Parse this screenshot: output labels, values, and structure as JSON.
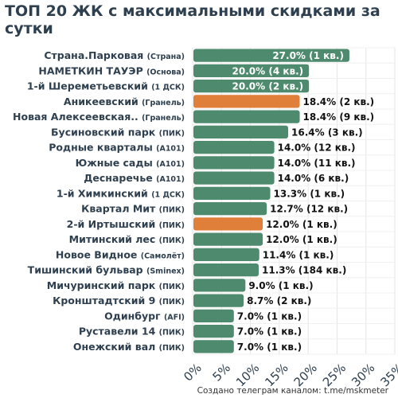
{
  "chart_data": {
    "type": "bar",
    "orientation": "horizontal",
    "title": "ТОП 20 ЖК с максимальными скидками за сутки",
    "xlabel": "",
    "ylabel": "",
    "xlim": [
      0,
      35
    ],
    "x_ticks": [
      "0%",
      "5%",
      "10%",
      "15%",
      "20%",
      "25%",
      "30%",
      "35%"
    ],
    "grid": true,
    "colors": {
      "default": "#4e8b6e",
      "highlight": "#e07f3a",
      "grid": "#e4e4e4",
      "axis_text": "#2e3f4f"
    },
    "bars": [
      {
        "name": "Страна.Парковая",
        "developer": "(Страна)",
        "value": 27.0,
        "label": "27.0% (1 кв.)",
        "highlight": false
      },
      {
        "name": "НАМЕТКИН ТАУЭР",
        "developer": "(Основа)",
        "value": 20.0,
        "label": "20.0% (4 кв.)",
        "highlight": false
      },
      {
        "name": "1-й Шереметьевский",
        "developer": "(1 ДСК)",
        "value": 20.0,
        "label": "20.0% (2 кв.)",
        "highlight": false
      },
      {
        "name": "Аникеевский",
        "developer": "(Гранель)",
        "value": 18.4,
        "label": "18.4% (2 кв.)",
        "highlight": true
      },
      {
        "name": "Новая Алексеевская..",
        "developer": "(Гранель)",
        "value": 18.4,
        "label": "18.4% (9 кв.)",
        "highlight": false
      },
      {
        "name": "Бусиновский парк",
        "developer": "(ПИК)",
        "value": 16.4,
        "label": "16.4% (3 кв.)",
        "highlight": false
      },
      {
        "name": "Родные кварталы",
        "developer": "(А101)",
        "value": 14.0,
        "label": "14.0% (12 кв.)",
        "highlight": false
      },
      {
        "name": "Южные сады",
        "developer": "(А101)",
        "value": 14.0,
        "label": "14.0% (11 кв.)",
        "highlight": false
      },
      {
        "name": "Деснаречье",
        "developer": "(А101)",
        "value": 14.0,
        "label": "14.0% (6 кв.)",
        "highlight": false
      },
      {
        "name": "1-й Химкинский",
        "developer": "(1 ДСК)",
        "value": 13.3,
        "label": "13.3% (1 кв.)",
        "highlight": false
      },
      {
        "name": "Квартал Мит",
        "developer": "(ПИК)",
        "value": 12.7,
        "label": "12.7% (12 кв.)",
        "highlight": false
      },
      {
        "name": "2-й Иртышский",
        "developer": "(ПИК)",
        "value": 12.0,
        "label": "12.0% (1 кв.)",
        "highlight": true
      },
      {
        "name": "Митинский лес",
        "developer": "(ПИК)",
        "value": 12.0,
        "label": "12.0% (1 кв.)",
        "highlight": false
      },
      {
        "name": "Новое Видное",
        "developer": "(Самолёт)",
        "value": 11.4,
        "label": "11.4% (1 кв.)",
        "highlight": false
      },
      {
        "name": "Тишинский бульвар",
        "developer": "(Sminex)",
        "value": 11.3,
        "label": "11.3% (184 кв.)",
        "highlight": false
      },
      {
        "name": "Мичуринский парк",
        "developer": "(ПИК)",
        "value": 9.0,
        "label": "9.0% (1 кв.)",
        "highlight": false
      },
      {
        "name": "Кронштадтский 9",
        "developer": "(ПИК)",
        "value": 8.7,
        "label": "8.7% (2 кв.)",
        "highlight": false
      },
      {
        "name": "Одинбург",
        "developer": "(AFI)",
        "value": 7.0,
        "label": "7.0% (1 кв.)",
        "highlight": false
      },
      {
        "name": "Руставели 14",
        "developer": "(ПИК)",
        "value": 7.0,
        "label": "7.0% (1 кв.)",
        "highlight": false
      },
      {
        "name": "Онежский вал",
        "developer": "(ПИК)",
        "value": 7.0,
        "label": "7.0% (1 кв.)",
        "highlight": false
      }
    ]
  },
  "footer": "Создано телеграм каналом: t.me/mskmeter"
}
